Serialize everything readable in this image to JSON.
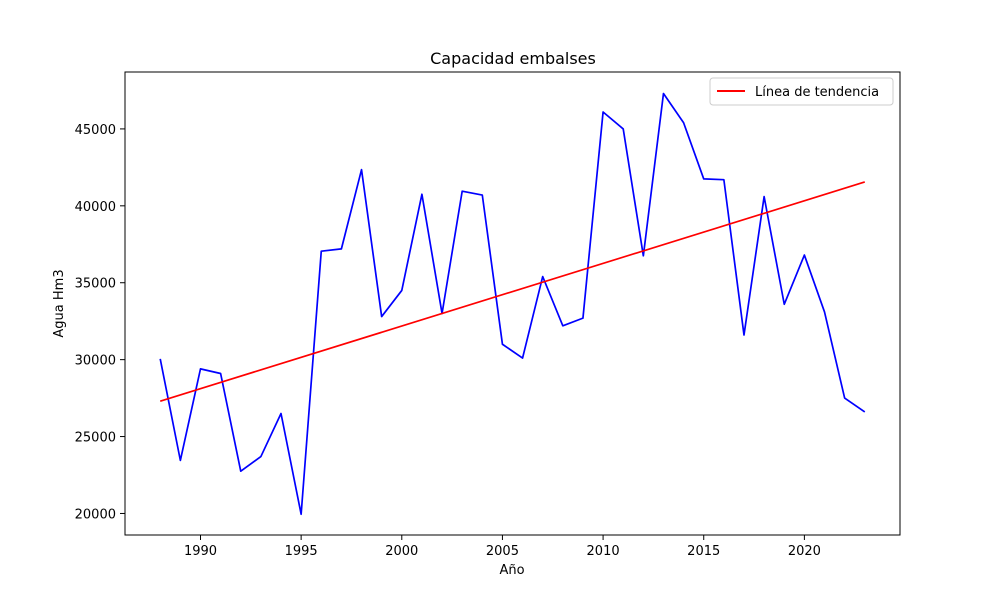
{
  "chart_data": {
    "type": "line",
    "title": "Capacidad embalses",
    "xlabel": "Año",
    "ylabel": "Agua Hm3",
    "xlim": [
      1986.25,
      2024.75
    ],
    "ylim": [
      18600,
      48700
    ],
    "xticks": [
      1990,
      1995,
      2000,
      2005,
      2010,
      2015,
      2020
    ],
    "yticks": [
      20000,
      25000,
      30000,
      35000,
      40000,
      45000
    ],
    "grid": false,
    "legend": {
      "placement": "top-right",
      "entries": [
        "Línea de tendencia"
      ]
    },
    "colors": {
      "data": "#0000ff",
      "trend": "#ff0000"
    },
    "x": [
      1988,
      1989,
      1990,
      1991,
      1992,
      1993,
      1994,
      1995,
      1996,
      1997,
      1998,
      1999,
      2000,
      2001,
      2002,
      2003,
      2004,
      2005,
      2006,
      2007,
      2008,
      2009,
      2010,
      2011,
      2012,
      2013,
      2014,
      2015,
      2016,
      2017,
      2018,
      2019,
      2020,
      2021,
      2022,
      2023
    ],
    "series": [
      {
        "color": "#0000ff",
        "values": [
          30050,
          23450,
          29400,
          29100,
          22750,
          23700,
          26500,
          19950,
          37050,
          37200,
          42350,
          32800,
          34500,
          40750,
          33000,
          40950,
          40700,
          31000,
          30100,
          35400,
          32200,
          32700,
          46100,
          45000,
          36750,
          47300,
          45400,
          41750,
          41700,
          31600,
          40600,
          33600,
          36800,
          33100,
          27500,
          26600
        ]
      },
      {
        "name": "Línea de tendencia",
        "color": "#ff0000",
        "values": [
          27300,
          41550
        ],
        "x": [
          1988,
          2023
        ]
      }
    ]
  }
}
